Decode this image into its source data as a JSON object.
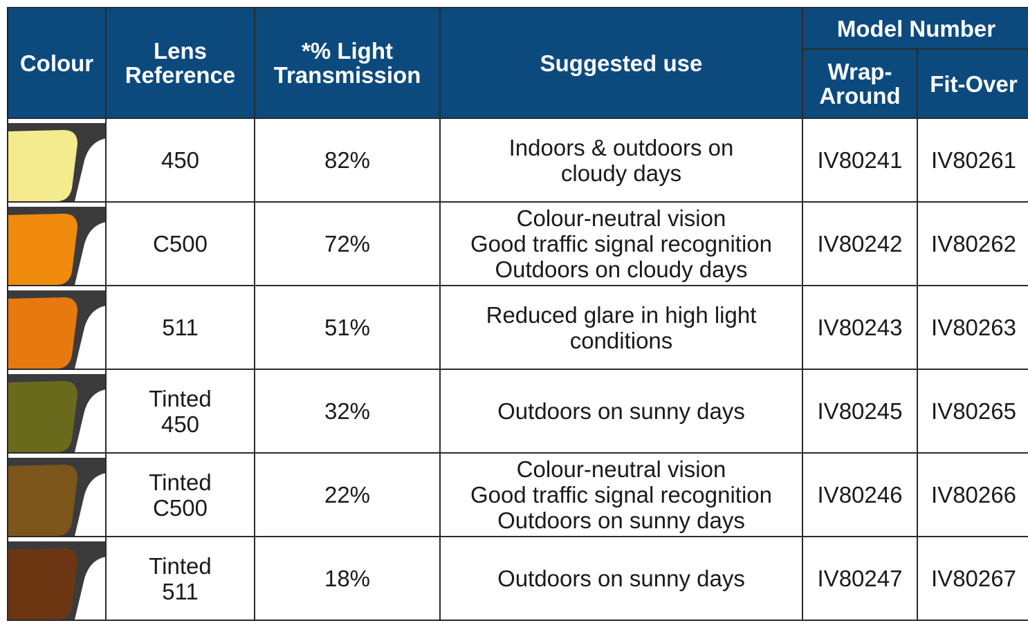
{
  "header": {
    "colour": "Colour",
    "lens_reference": [
      "Lens",
      "Reference"
    ],
    "light_transmission": [
      "*% Light",
      "Transmission"
    ],
    "suggested_use": "Suggested use",
    "model_number": "Model Number",
    "wrap_around": [
      "Wrap-",
      "Around"
    ],
    "fit_over": "Fit-Over"
  },
  "rows": [
    {
      "lens_color": "#f4eb8f",
      "lens_reference": [
        "450"
      ],
      "light_transmission": "82%",
      "suggested_use": [
        "Indoors & outdoors on",
        "cloudy days"
      ],
      "wrap_around": "IV80241",
      "fit_over": "IV80261"
    },
    {
      "lens_color": "#ef8a0c",
      "lens_reference": [
        "C500"
      ],
      "light_transmission": "72%",
      "suggested_use": [
        "Colour-neutral vision",
        "Good traffic signal recognition",
        "Outdoors on cloudy days"
      ],
      "wrap_around": "IV80242",
      "fit_over": "IV80262"
    },
    {
      "lens_color": "#e8790f",
      "lens_reference": [
        "511"
      ],
      "light_transmission": "51%",
      "suggested_use": [
        "Reduced glare in high light",
        "conditions"
      ],
      "wrap_around": "IV80243",
      "fit_over": "IV80263"
    },
    {
      "lens_color": "#6a6a1c",
      "lens_reference": [
        "Tinted",
        "450"
      ],
      "light_transmission": "32%",
      "suggested_use": [
        "Outdoors on sunny days"
      ],
      "wrap_around": "IV80245",
      "fit_over": "IV80265"
    },
    {
      "lens_color": "#7b551a",
      "lens_reference": [
        "Tinted",
        "C500"
      ],
      "light_transmission": "22%",
      "suggested_use": [
        "Colour-neutral vision",
        "Good traffic signal recognition",
        "Outdoors on sunny days"
      ],
      "wrap_around": "IV80246",
      "fit_over": "IV80266"
    },
    {
      "lens_color": "#6d3613",
      "lens_reference": [
        "Tinted",
        "511"
      ],
      "light_transmission": "18%",
      "suggested_use": [
        "Outdoors on sunny days"
      ],
      "wrap_around": "IV80247",
      "fit_over": "IV80267"
    }
  ]
}
